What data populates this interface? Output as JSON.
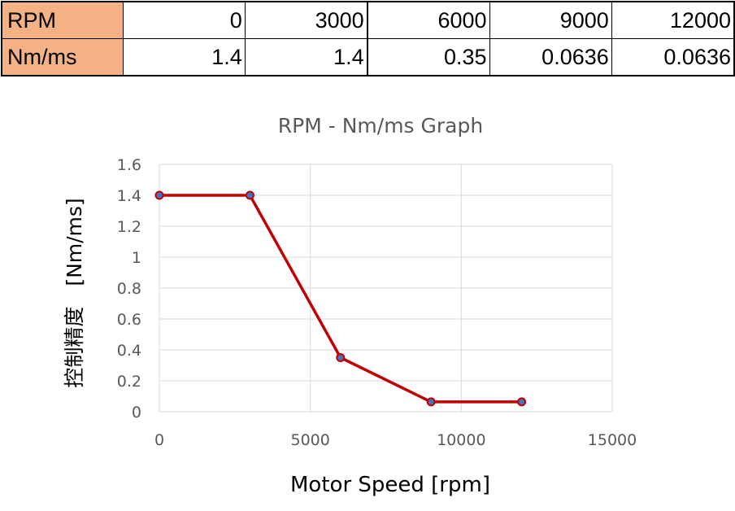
{
  "table": {
    "row1_label": "RPM",
    "row1_values": [
      "0",
      "3000",
      "6000",
      "9000",
      "12000"
    ],
    "row2_label": "Nm/ms",
    "row2_values": [
      "1.4",
      "1.4",
      "0.35",
      "0.0636",
      "0.0636"
    ]
  },
  "chart_data": {
    "type": "line",
    "title": "RPM - Nm/ms Graph",
    "xlabel": "Motor Speed [rpm]",
    "ylabel": "控制精度　[Nm/ms]",
    "x": [
      0,
      3000,
      6000,
      9000,
      12000
    ],
    "series": [
      {
        "values": [
          1.4,
          1.4,
          0.35,
          0.0636,
          0.0636
        ]
      }
    ],
    "xlim": [
      0,
      15000
    ],
    "ylim": [
      0,
      1.6
    ],
    "xticks": [
      0,
      5000,
      10000,
      15000
    ],
    "yticks": [
      0,
      0.2,
      0.4,
      0.6,
      0.8,
      1,
      1.2,
      1.4,
      1.6
    ],
    "grid": true,
    "legend": "none",
    "colors": {
      "line": "#c00000",
      "marker_fill": "#4472c4",
      "marker_edge": "#c00000",
      "grid": "#d9d9d9",
      "text": "#595959"
    }
  }
}
